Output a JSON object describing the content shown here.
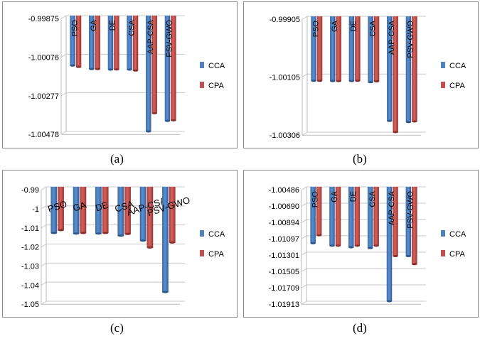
{
  "chart_data": [
    {
      "panel": "(a)",
      "type": "bar",
      "categories": [
        "PSO",
        "GA",
        "DE",
        "CSA",
        "AAP-CSA",
        "PSV-GWO"
      ],
      "series": [
        {
          "name": "CCA",
          "values": [
            -1.00135,
            -1.00153,
            -1.00156,
            -1.00156,
            -1.00478,
            -1.00423
          ]
        },
        {
          "name": "CPA",
          "values": [
            -1.00142,
            -1.00153,
            -1.00155,
            -1.00161,
            -1.00383,
            -1.0042
          ]
        }
      ],
      "yticks": [
        "-0.99875",
        "-1.00076",
        "-1.00277",
        "-1.00478"
      ],
      "ylim": [
        -1.00478,
        -0.99875
      ],
      "legend": "right"
    },
    {
      "panel": "(b)",
      "type": "bar",
      "categories": [
        "PSO",
        "GA",
        "DE",
        "CSA",
        "AAP-CSA",
        "PSV-GWO"
      ],
      "series": [
        {
          "name": "CCA",
          "values": [
            -1.00128,
            -1.00129,
            -1.00129,
            -1.00133,
            -1.00267,
            -1.00271
          ]
        },
        {
          "name": "CPA",
          "values": [
            -1.00128,
            -1.00129,
            -1.00128,
            -1.0013,
            -1.00306,
            -1.00269
          ]
        }
      ],
      "yticks": [
        "-0.99905",
        "-1.00105",
        "-1.00306"
      ],
      "ylim": [
        -1.00306,
        -0.99905
      ],
      "legend": "right"
    },
    {
      "panel": "(c)",
      "type": "bar",
      "categories": [
        "PSO",
        "GA",
        "DE",
        "CSA",
        "AAP-CSA",
        "PSV-GWO"
      ],
      "series": [
        {
          "name": "CCA",
          "values": [
            -1.0142,
            -1.0145,
            -1.0145,
            -1.0156,
            -1.0182,
            -1.0452
          ]
        },
        {
          "name": "CPA",
          "values": [
            -1.0127,
            -1.0142,
            -1.0142,
            -1.0147,
            -1.0218,
            -1.0192
          ]
        }
      ],
      "yticks": [
        "-0.99",
        "-1",
        "-1.01",
        "-1.02",
        "-1.03",
        "-1.04",
        "-1.05"
      ],
      "ylim": [
        -1.05,
        -0.99
      ],
      "legend": "right"
    },
    {
      "panel": "(d)",
      "type": "bar",
      "categories": [
        "PSO",
        "GA",
        "DE",
        "CSA",
        "AAP-CSA",
        "PSV-GWO"
      ],
      "series": [
        {
          "name": "CCA",
          "values": [
            -1.0119,
            -1.0122,
            -1.0124,
            -1.0125,
            -1.01913,
            -1.0135
          ]
        },
        {
          "name": "CPA",
          "values": [
            -1.0109,
            -1.0122,
            -1.0122,
            -1.0122,
            -1.0135,
            -1.0145
          ]
        }
      ],
      "yticks": [
        "-1.00486",
        "-1.00690",
        "-1.00894",
        "-1.01097",
        "-1.01301",
        "-1.01505",
        "-1.01709",
        "-1.01913"
      ],
      "ylim": [
        -1.01913,
        -1.00486
      ],
      "legend": "right"
    }
  ],
  "colors": {
    "CCA": "#4f81bd",
    "CPA": "#c0504d"
  }
}
